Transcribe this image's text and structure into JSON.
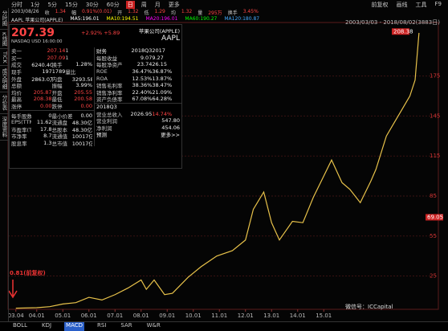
{
  "toolbar": {
    "tabs": [
      "分时",
      "1分",
      "5分",
      "15分",
      "30分",
      "60分",
      "日",
      "周",
      "月",
      "更多"
    ],
    "active": 6,
    "right": [
      "前复权",
      "画线",
      "工具",
      "F9"
    ]
  },
  "sidebar": [
    "分时图",
    "K线图",
    "TICK",
    "成交明细",
    "分价表",
    "深度资料"
  ],
  "info_line": [
    "2003/08/26",
    "收",
    "1.34",
    "幅",
    "0.91%(0.01)",
    "开",
    "1.32",
    "低",
    "1.29",
    "均",
    "1.32",
    "量",
    "295万",
    "换手",
    "3.45%"
  ],
  "ma_line": [
    "AAPL 苹果公司(APPLE)",
    "MA5:196.01",
    "MA10:194.51",
    "MA20:196.01",
    "MA60:190.27",
    "MA120:180.87"
  ],
  "quote": {
    "price": "207.39",
    "change": "+2.92% +5.89",
    "name": "苹果公司(APPLE)",
    "code": "AAPL",
    "market": "NASDAQ  USD  16:00:00",
    "rows": [
      [
        "卖一",
        "207.14",
        "1"
      ],
      [
        "买一",
        "207.09",
        "1"
      ],
      [
        "成交",
        "6240.40万",
        "换手",
        "1.28%"
      ],
      [
        "现手",
        "1971789",
        "量比"
      ],
      [
        "外盘",
        "2863.0万",
        "内盘",
        "3293.58万"
      ],
      [
        "总额",
        "",
        "振幅",
        "3.99%"
      ],
      [
        "均价",
        "205.87",
        "开盘",
        "205.55"
      ],
      [
        "最高",
        "208.38",
        "最低",
        "200.58"
      ],
      [
        "涨停",
        "0.00",
        "跌停",
        "0.00"
      ]
    ],
    "rows2": [
      [
        "每手股数",
        "0",
        "最小价差",
        "0.00"
      ],
      [
        "EPS(TTM)",
        "11.62",
        "流通盘",
        "48.30亿"
      ],
      [
        "市盈率(TTM)",
        "17.8",
        "总股本",
        "48.30亿"
      ],
      [
        "市净率",
        "8.7",
        "流通值",
        "10017亿"
      ],
      [
        "股息率",
        "1.3",
        "总市值",
        "10017亿"
      ]
    ]
  },
  "finance": {
    "header": [
      "财务",
      "2018Q3",
      "2017"
    ],
    "rows": [
      [
        "每股收益",
        "9.07",
        "9.27"
      ],
      [
        "每股净资产",
        "23.74",
        "26.15"
      ],
      [
        "ROE",
        "36.47%",
        "36.87%"
      ],
      [
        "ROA",
        "12.53%",
        "13.87%"
      ],
      [
        "销售毛利率",
        "38.36%",
        "38.47%"
      ],
      [
        "销售净利率",
        "22.40%",
        "21.09%"
      ],
      [
        "资产负债率",
        "67.08%",
        "64.28%"
      ]
    ],
    "header2": [
      "2018Q3"
    ],
    "rows2": [
      [
        "营业总收入",
        "2026.95",
        "14.74%"
      ],
      [
        "营业利润",
        "547.80"
      ],
      [
        "净利润",
        "454.06"
      ]
    ],
    "footer": [
      "预测",
      "更多>>"
    ]
  },
  "chart": {
    "type": "line",
    "range_label": "2003/03/03 - 2018/08/02(3883日)",
    "annotation": "0.81(前复权)",
    "color": "#e8c24a",
    "grid": true,
    "x": [
      2003.2,
      2004.0,
      2004.5,
      2005.0,
      2005.5,
      2006.0,
      2006.5,
      2007.0,
      2007.5,
      2008.0,
      2008.2,
      2008.5,
      2008.9,
      2009.2,
      2009.8,
      2010.3,
      2010.9,
      2011.5,
      2012.0,
      2012.3,
      2012.7,
      2013.0,
      2013.3,
      2013.8,
      2014.2,
      2014.6,
      2015.0,
      2015.3,
      2015.7,
      2016.0,
      2016.4,
      2016.8,
      2017.0,
      2017.4,
      2017.7,
      2018.0,
      2018.3,
      2018.5,
      2018.65
    ],
    "values": [
      0.81,
      1.2,
      2,
      4,
      5,
      9,
      7,
      11,
      16,
      22,
      15,
      22,
      11,
      12,
      24,
      32,
      40,
      44,
      52,
      75,
      88,
      65,
      52,
      66,
      65,
      84,
      100,
      112,
      95,
      90,
      80,
      96,
      105,
      130,
      140,
      150,
      160,
      172,
      207.39
    ],
    "xlim": [
      2002.9,
      2018.9
    ],
    "ylim": [
      0,
      220
    ],
    "yticks": [
      25,
      55,
      85,
      115,
      145,
      175
    ],
    "xticks": [
      {
        "value": 2003.2,
        "label": "03.04"
      },
      {
        "value": 2004,
        "label": "04.01"
      },
      {
        "value": 2005,
        "label": "05.01"
      },
      {
        "value": 2006,
        "label": "06.01"
      },
      {
        "value": 2007,
        "label": "07.01"
      },
      {
        "value": 2008,
        "label": "08.01"
      },
      {
        "value": 2009,
        "label": "09.01"
      },
      {
        "value": 2010,
        "label": "10.01"
      },
      {
        "value": 2011,
        "label": "11.01"
      },
      {
        "value": 2012,
        "label": "12.01"
      },
      {
        "value": 2013,
        "label": "13.01"
      },
      {
        "value": 2014,
        "label": "14.01"
      },
      {
        "value": 2015,
        "label": "15.01"
      }
    ],
    "tags": [
      208.38,
      69.05
    ]
  },
  "bottom_tabs": [
    "BOLL",
    "KDJ",
    "MACD",
    "RSI",
    "SAR",
    "W&R"
  ],
  "bottom_active": 2,
  "watermark": "微信号：ICCapital"
}
